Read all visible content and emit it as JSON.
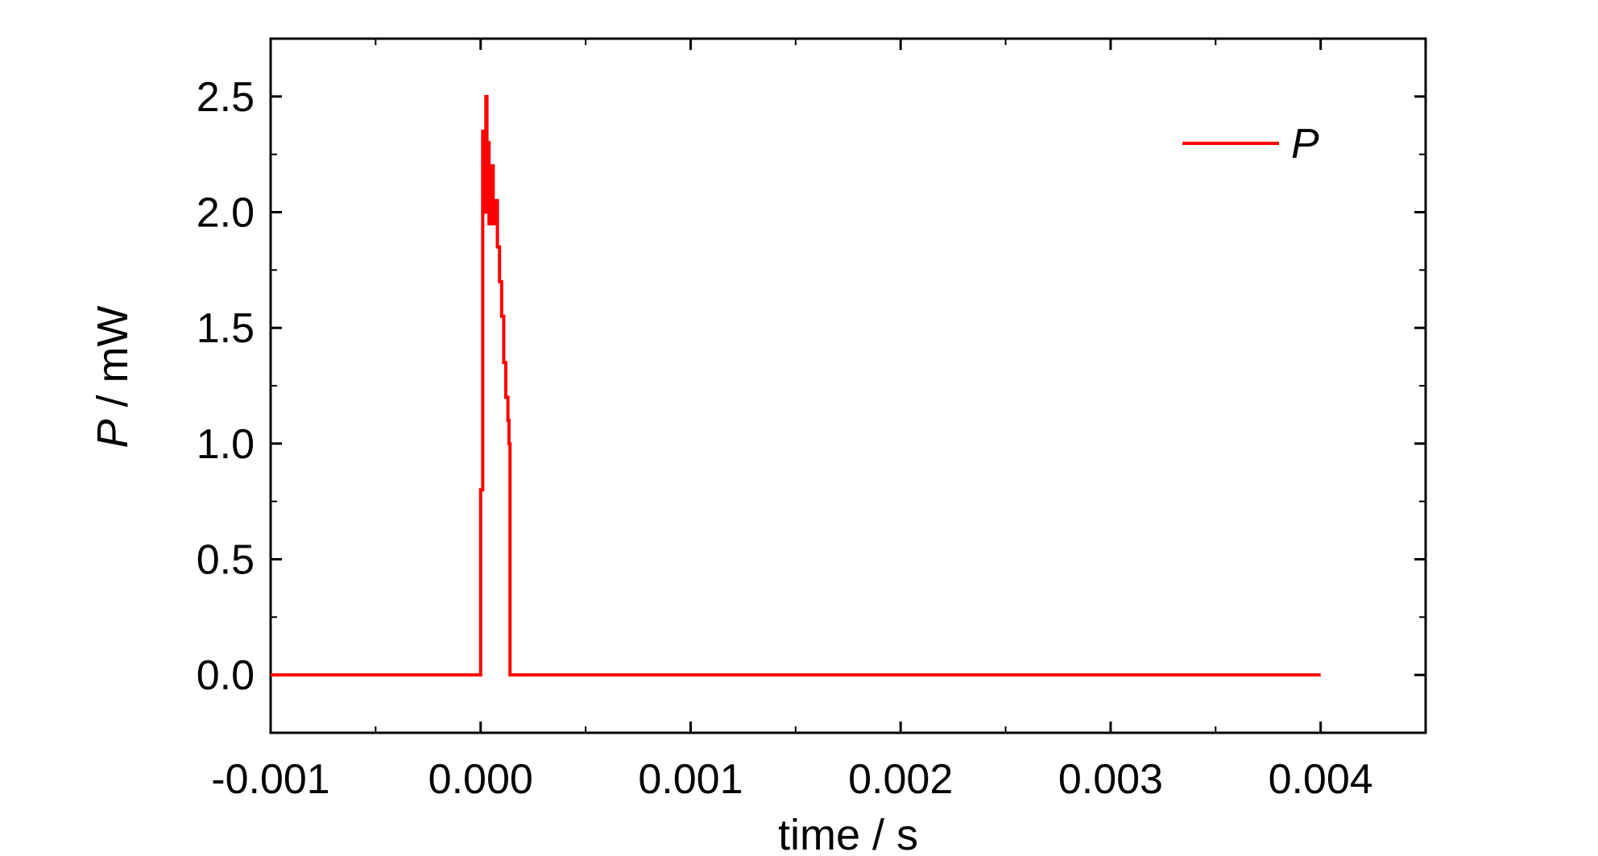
{
  "chart_data": {
    "type": "line",
    "xlabel": "time / s",
    "ylabel_italic": "P",
    "ylabel_rest": " / mW",
    "xlim": [
      -0.001,
      0.0045
    ],
    "ylim": [
      -0.25,
      2.75
    ],
    "x_ticks": [
      -0.001,
      0.0,
      0.001,
      0.002,
      0.003,
      0.004
    ],
    "x_tick_labels": [
      "-0.001",
      "0.000",
      "0.001",
      "0.002",
      "0.003",
      "0.004"
    ],
    "y_ticks": [
      0.0,
      0.5,
      1.0,
      1.5,
      2.0,
      2.5
    ],
    "y_tick_labels": [
      "0.0",
      "0.5",
      "1.0",
      "1.5",
      "2.0",
      "2.5"
    ],
    "legend_position": "top-right",
    "series": [
      {
        "name": "P",
        "color": "#ff0000",
        "x": [
          -0.001,
          -1e-05,
          0.0,
          1e-05,
          2e-05,
          2.5e-05,
          3e-05,
          3.5e-05,
          4e-05,
          5e-05,
          6e-05,
          7e-05,
          8e-05,
          9e-05,
          0.0001,
          0.00011,
          0.00012,
          0.00013,
          0.000135,
          0.00014,
          0.004
        ],
        "y": [
          0.0,
          0.0,
          0.8,
          2.35,
          2.0,
          2.5,
          2.1,
          2.3,
          1.95,
          2.2,
          1.95,
          2.05,
          1.85,
          1.7,
          1.55,
          1.35,
          1.2,
          1.1,
          1.0,
          0.0,
          0.0
        ]
      }
    ]
  }
}
